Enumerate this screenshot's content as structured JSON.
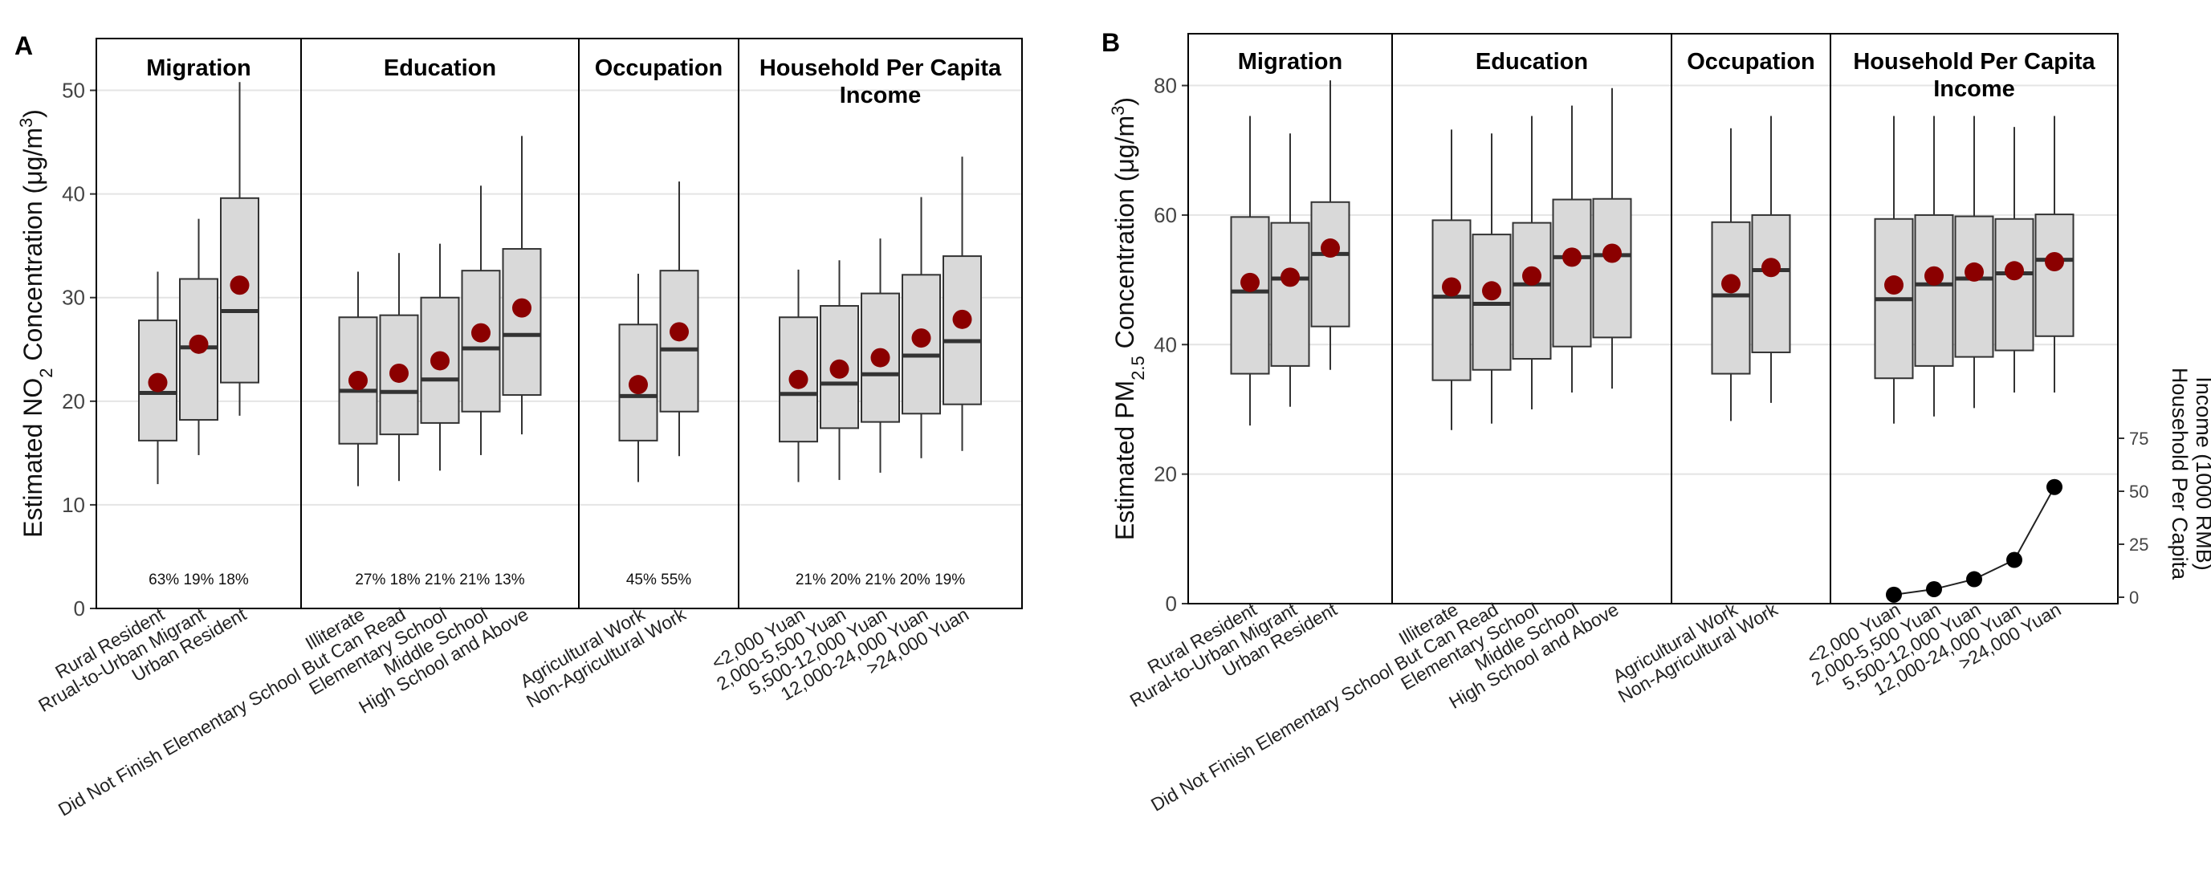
{
  "chart_data": [
    {
      "type": "boxplot",
      "panel_label": "A",
      "ylabel_parts": [
        "Estimated NO",
        "2",
        " Concentration (",
        "μ",
        "g/m",
        "3",
        ")"
      ],
      "ylim": [
        0,
        55
      ],
      "yticks": [
        0,
        10,
        20,
        30,
        40,
        50
      ],
      "grid": true,
      "groups": [
        {
          "title_lines": [
            "Migration"
          ],
          "shares": "63% 19% 18%",
          "boxes": [
            {
              "label": "Rural Resident",
              "min": 12.0,
              "q1": 16.2,
              "median": 20.8,
              "q3": 27.8,
              "max": 32.5,
              "mean": 21.8
            },
            {
              "label": "Rrual-to-Urban Migrant",
              "min": 14.8,
              "q1": 18.2,
              "median": 25.2,
              "q3": 31.8,
              "max": 37.6,
              "mean": 25.5
            },
            {
              "label": "Urban Resident",
              "min": 18.6,
              "q1": 21.8,
              "median": 28.7,
              "q3": 39.6,
              "max": 50.8,
              "mean": 31.2
            }
          ]
        },
        {
          "title_lines": [
            "Education"
          ],
          "shares": "27% 18% 21% 21% 13%",
          "boxes": [
            {
              "label": "Illiterate",
              "min": 11.8,
              "q1": 15.9,
              "median": 21.0,
              "q3": 28.1,
              "max": 32.5,
              "mean": 22.0
            },
            {
              "label": "Did Not Finish Elementary School But Can Read",
              "min": 12.3,
              "q1": 16.8,
              "median": 20.9,
              "q3": 28.3,
              "max": 34.3,
              "mean": 22.7
            },
            {
              "label": "Elementary School",
              "min": 13.3,
              "q1": 17.9,
              "median": 22.1,
              "q3": 30.0,
              "max": 35.2,
              "mean": 23.9
            },
            {
              "label": "Middle School",
              "min": 14.8,
              "q1": 19.0,
              "median": 25.1,
              "q3": 32.6,
              "max": 40.8,
              "mean": 26.6
            },
            {
              "label": "High School and Above",
              "min": 16.8,
              "q1": 20.6,
              "median": 26.4,
              "q3": 34.7,
              "max": 45.6,
              "mean": 29.0
            }
          ]
        },
        {
          "title_lines": [
            "Occupation"
          ],
          "shares": "45% 55%",
          "boxes": [
            {
              "label": "Agricultural Work",
              "min": 12.2,
              "q1": 16.2,
              "median": 20.5,
              "q3": 27.4,
              "max": 32.3,
              "mean": 21.6
            },
            {
              "label": "Non-Agricultural Work",
              "min": 14.7,
              "q1": 19.0,
              "median": 25.0,
              "q3": 32.6,
              "max": 41.2,
              "mean": 26.7
            }
          ]
        },
        {
          "title_lines": [
            "Household Per Capita",
            "Income"
          ],
          "shares": "21% 20% 21% 20% 19%",
          "boxes": [
            {
              "label": "<2,000 Yuan",
              "min": 12.2,
              "q1": 16.1,
              "median": 20.7,
              "q3": 28.1,
              "max": 32.7,
              "mean": 22.1
            },
            {
              "label": "2,000-5,500 Yuan",
              "min": 12.4,
              "q1": 17.4,
              "median": 21.7,
              "q3": 29.2,
              "max": 33.6,
              "mean": 23.1
            },
            {
              "label": "5,500-12,000 Yuan",
              "min": 13.1,
              "q1": 18.0,
              "median": 22.6,
              "q3": 30.4,
              "max": 35.7,
              "mean": 24.2
            },
            {
              "label": "12,000-24,000 Yuan",
              "min": 14.5,
              "q1": 18.8,
              "median": 24.4,
              "q3": 32.2,
              "max": 39.7,
              "mean": 26.1
            },
            {
              "label": ">24,000 Yuan",
              "min": 15.2,
              "q1": 19.7,
              "median": 25.8,
              "q3": 34.0,
              "max": 43.6,
              "mean": 27.9
            }
          ]
        }
      ]
    },
    {
      "type": "boxplot",
      "panel_label": "B",
      "ylabel_parts": [
        "Estimated PM",
        "2.5",
        " Concentration (",
        "μ",
        "g/m",
        "3",
        ")"
      ],
      "ylim": [
        0,
        88
      ],
      "yticks": [
        0,
        20,
        40,
        60,
        80
      ],
      "grid": true,
      "groups": [
        {
          "title_lines": [
            "Migration"
          ],
          "boxes": [
            {
              "label": "Rural Resident",
              "min": 27.5,
              "q1": 35.5,
              "median": 48.2,
              "q3": 59.7,
              "max": 75.3,
              "mean": 49.6
            },
            {
              "label": "Rural-to-Urban Migrant",
              "min": 30.4,
              "q1": 36.7,
              "median": 50.2,
              "q3": 58.8,
              "max": 72.6,
              "mean": 50.4
            },
            {
              "label": "Urban Resident",
              "min": 36.1,
              "q1": 42.8,
              "median": 54.0,
              "q3": 62.0,
              "max": 80.8,
              "mean": 54.9
            }
          ]
        },
        {
          "title_lines": [
            "Education"
          ],
          "boxes": [
            {
              "label": "Illiterate",
              "min": 26.8,
              "q1": 34.5,
              "median": 47.4,
              "q3": 59.2,
              "max": 73.2,
              "mean": 48.9
            },
            {
              "label": "Did Not Finish Elementary School But Can Read",
              "min": 27.8,
              "q1": 36.1,
              "median": 46.3,
              "q3": 57.0,
              "max": 72.6,
              "mean": 48.3
            },
            {
              "label": "Elementary School",
              "min": 30.0,
              "q1": 37.8,
              "median": 49.3,
              "q3": 58.8,
              "max": 75.3,
              "mean": 50.6
            },
            {
              "label": "Middle School",
              "min": 32.6,
              "q1": 39.7,
              "median": 53.5,
              "q3": 62.4,
              "max": 76.9,
              "mean": 53.5
            },
            {
              "label": "High School and Above",
              "min": 33.2,
              "q1": 41.1,
              "median": 53.8,
              "q3": 62.5,
              "max": 79.6,
              "mean": 54.1
            }
          ]
        },
        {
          "title_lines": [
            "Occupation"
          ],
          "boxes": [
            {
              "label": "Agricultural Work",
              "min": 28.2,
              "q1": 35.5,
              "median": 47.6,
              "q3": 58.9,
              "max": 73.4,
              "mean": 49.4
            },
            {
              "label": "Non-Agricultural Work",
              "min": 31.0,
              "q1": 38.8,
              "median": 51.5,
              "q3": 60.0,
              "max": 75.3,
              "mean": 51.9
            }
          ]
        },
        {
          "title_lines": [
            "Household Per Capita",
            "Income"
          ],
          "boxes": [
            {
              "label": "<2,000 Yuan",
              "min": 27.8,
              "q1": 34.8,
              "median": 47.0,
              "q3": 59.4,
              "max": 75.3,
              "mean": 49.2
            },
            {
              "label": "2,000-5,500 Yuan",
              "min": 28.9,
              "q1": 36.7,
              "median": 49.3,
              "q3": 60.0,
              "max": 75.3,
              "mean": 50.6
            },
            {
              "label": "5,500-12,000 Yuan",
              "min": 30.2,
              "q1": 38.1,
              "median": 50.2,
              "q3": 59.8,
              "max": 75.3,
              "mean": 51.2
            },
            {
              "label": "12,000-24,000 Yuan",
              "min": 32.6,
              "q1": 39.1,
              "median": 51.0,
              "q3": 59.4,
              "max": 73.6,
              "mean": 51.4
            },
            {
              "label": ">24,000 Yuan",
              "min": 32.6,
              "q1": 41.3,
              "median": 53.1,
              "q3": 60.1,
              "max": 75.3,
              "mean": 52.8
            }
          ]
        }
      ],
      "inset": {
        "type": "line",
        "ylabel_lines": [
          "Household Per Capita",
          "Income (1000 RMB)"
        ],
        "ylim": [
          0,
          75
        ],
        "yticks": [
          0,
          25,
          50,
          75
        ],
        "values": [
          1.2,
          3.8,
          8.5,
          17.6,
          52.0
        ]
      }
    }
  ]
}
